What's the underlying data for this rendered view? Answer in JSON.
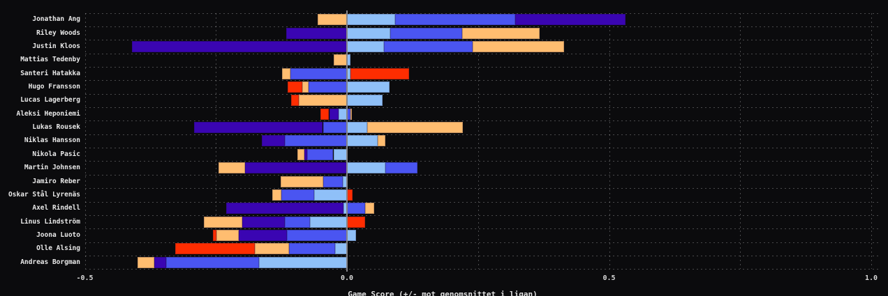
{
  "chart_data": {
    "type": "bar",
    "orientation": "horizontal",
    "stacked": true,
    "diverging": true,
    "title": "",
    "xlabel": "Game Score (+/- mot genomsnittet i ligan)",
    "ylabel": "",
    "xlim": [
      -0.5,
      1.02
    ],
    "xticks": [
      -0.5,
      0.0,
      0.5,
      1.0
    ],
    "xtick_labels": [
      "-0.5",
      "0.0",
      "0.5",
      "1.0"
    ],
    "minor_grid_step": 0.25,
    "grid": "dashed",
    "legend": "none",
    "background_color": "#0b0b0d",
    "text_color": "#e9e9e9",
    "zero_line_color": "#85858a",
    "palette": {
      "indigo": "#3a05b2",
      "royal": "#4a55f1",
      "lightblue": "#8fc0f8",
      "orange": "#ffbd70",
      "red": "#fe2d01"
    },
    "players": [
      {
        "name": "Jonathan Ang",
        "segments": [
          {
            "color": "orange",
            "from": -0.056,
            "to": 0
          },
          {
            "color": "lightblue",
            "from": 0,
            "to": 0.092
          },
          {
            "color": "royal",
            "from": 0.092,
            "to": 0.321
          },
          {
            "color": "indigo",
            "from": 0.321,
            "to": 0.531
          }
        ]
      },
      {
        "name": "Riley Woods",
        "segments": [
          {
            "color": "indigo",
            "from": -0.116,
            "to": 0
          },
          {
            "color": "lightblue",
            "from": 0,
            "to": 0.083
          },
          {
            "color": "royal",
            "from": 0.083,
            "to": 0.22
          },
          {
            "color": "orange",
            "from": 0.22,
            "to": 0.367
          }
        ]
      },
      {
        "name": "Justin Kloos",
        "segments": [
          {
            "color": "indigo",
            "from": -0.41,
            "to": 0
          },
          {
            "color": "lightblue",
            "from": 0,
            "to": 0.071
          },
          {
            "color": "royal",
            "from": 0.071,
            "to": 0.24
          },
          {
            "color": "orange",
            "from": 0.24,
            "to": 0.414
          }
        ]
      },
      {
        "name": "Mattias Tedenby",
        "segments": [
          {
            "color": "orange",
            "from": -0.026,
            "to": 0
          },
          {
            "color": "lightblue",
            "from": 0,
            "to": 0.007
          }
        ]
      },
      {
        "name": "Santeri Hatakka",
        "segments": [
          {
            "color": "orange",
            "from": -0.124,
            "to": -0.108
          },
          {
            "color": "royal",
            "from": -0.108,
            "to": 0
          },
          {
            "color": "lightblue",
            "from": 0,
            "to": 0.007
          },
          {
            "color": "red",
            "from": 0.007,
            "to": 0.118
          }
        ]
      },
      {
        "name": "Hugo Fransson",
        "segments": [
          {
            "color": "red",
            "from": -0.113,
            "to": -0.085
          },
          {
            "color": "orange",
            "from": -0.085,
            "to": -0.073
          },
          {
            "color": "royal",
            "from": -0.073,
            "to": 0
          },
          {
            "color": "lightblue",
            "from": 0,
            "to": 0.081
          }
        ]
      },
      {
        "name": "Lucas Lagerberg",
        "segments": [
          {
            "color": "red",
            "from": -0.107,
            "to": -0.092
          },
          {
            "color": "orange",
            "from": -0.092,
            "to": 0
          },
          {
            "color": "lightblue",
            "from": 0,
            "to": 0.068
          }
        ]
      },
      {
        "name": "Aleksi Heponiemi",
        "segments": [
          {
            "color": "red",
            "from": -0.051,
            "to": -0.034
          },
          {
            "color": "indigo",
            "from": -0.034,
            "to": -0.016
          },
          {
            "color": "lightblue",
            "from": -0.016,
            "to": 0
          },
          {
            "color": "royal",
            "from": 0,
            "to": 0.006
          },
          {
            "color": "orange",
            "from": 0.006,
            "to": 0.009
          }
        ]
      },
      {
        "name": "Lukas Rousek",
        "segments": [
          {
            "color": "indigo",
            "from": -0.292,
            "to": -0.046
          },
          {
            "color": "royal",
            "from": -0.046,
            "to": 0
          },
          {
            "color": "lightblue",
            "from": 0,
            "to": 0.039
          },
          {
            "color": "orange",
            "from": 0.039,
            "to": 0.221
          }
        ]
      },
      {
        "name": "Niklas Hansson",
        "segments": [
          {
            "color": "indigo",
            "from": -0.162,
            "to": -0.118
          },
          {
            "color": "royal",
            "from": -0.118,
            "to": 0
          },
          {
            "color": "lightblue",
            "from": 0,
            "to": 0.058
          },
          {
            "color": "orange",
            "from": 0.058,
            "to": 0.073
          }
        ]
      },
      {
        "name": "Nikola Pasic",
        "segments": [
          {
            "color": "orange",
            "from": -0.095,
            "to": -0.081
          },
          {
            "color": "indigo",
            "from": -0.081,
            "to": -0.076
          },
          {
            "color": "royal",
            "from": -0.076,
            "to": -0.026
          },
          {
            "color": "lightblue",
            "from": -0.026,
            "to": 0
          }
        ]
      },
      {
        "name": "Martin Johnsen",
        "segments": [
          {
            "color": "orange",
            "from": -0.245,
            "to": -0.195
          },
          {
            "color": "indigo",
            "from": -0.195,
            "to": 0
          },
          {
            "color": "lightblue",
            "from": 0,
            "to": 0.073
          },
          {
            "color": "royal",
            "from": 0.073,
            "to": 0.135
          }
        ]
      },
      {
        "name": "Jamiro Reber",
        "segments": [
          {
            "color": "orange",
            "from": -0.126,
            "to": -0.045
          },
          {
            "color": "royal",
            "from": -0.045,
            "to": -0.008
          },
          {
            "color": "lightblue",
            "from": -0.008,
            "to": 0
          }
        ]
      },
      {
        "name": "Oskar Stål Lyrenäs",
        "segments": [
          {
            "color": "orange",
            "from": -0.142,
            "to": -0.125
          },
          {
            "color": "royal",
            "from": -0.125,
            "to": -0.062
          },
          {
            "color": "lightblue",
            "from": -0.062,
            "to": 0
          },
          {
            "color": "red",
            "from": 0,
            "to": 0.011
          }
        ]
      },
      {
        "name": "Axel Rindell",
        "segments": [
          {
            "color": "indigo",
            "from": -0.231,
            "to": -0.007
          },
          {
            "color": "lightblue",
            "from": -0.007,
            "to": 0
          },
          {
            "color": "royal",
            "from": 0,
            "to": 0.035
          },
          {
            "color": "orange",
            "from": 0.035,
            "to": 0.052
          }
        ]
      },
      {
        "name": "Linus Lindström",
        "segments": [
          {
            "color": "orange",
            "from": -0.273,
            "to": -0.2
          },
          {
            "color": "indigo",
            "from": -0.2,
            "to": -0.119
          },
          {
            "color": "royal",
            "from": -0.119,
            "to": -0.07
          },
          {
            "color": "lightblue",
            "from": -0.07,
            "to": 0
          },
          {
            "color": "red",
            "from": 0,
            "to": 0.034
          }
        ]
      },
      {
        "name": "Joona Luoto",
        "segments": [
          {
            "color": "red",
            "from": -0.256,
            "to": -0.249
          },
          {
            "color": "orange",
            "from": -0.249,
            "to": -0.206
          },
          {
            "color": "indigo",
            "from": -0.206,
            "to": -0.115
          },
          {
            "color": "royal",
            "from": -0.115,
            "to": 0
          },
          {
            "color": "lightblue",
            "from": 0,
            "to": 0.017
          }
        ]
      },
      {
        "name": "Olle Alsing",
        "segments": [
          {
            "color": "red",
            "from": -0.328,
            "to": -0.176
          },
          {
            "color": "orange",
            "from": -0.176,
            "to": -0.111
          },
          {
            "color": "royal",
            "from": -0.111,
            "to": -0.023
          },
          {
            "color": "lightblue",
            "from": -0.023,
            "to": 0.002
          }
        ]
      },
      {
        "name": "Andreas Borgman",
        "segments": [
          {
            "color": "orange",
            "from": -0.4,
            "to": -0.367
          },
          {
            "color": "indigo",
            "from": -0.367,
            "to": -0.345
          },
          {
            "color": "royal",
            "from": -0.345,
            "to": -0.168
          },
          {
            "color": "lightblue",
            "from": -0.168,
            "to": 0.002
          }
        ]
      }
    ]
  }
}
